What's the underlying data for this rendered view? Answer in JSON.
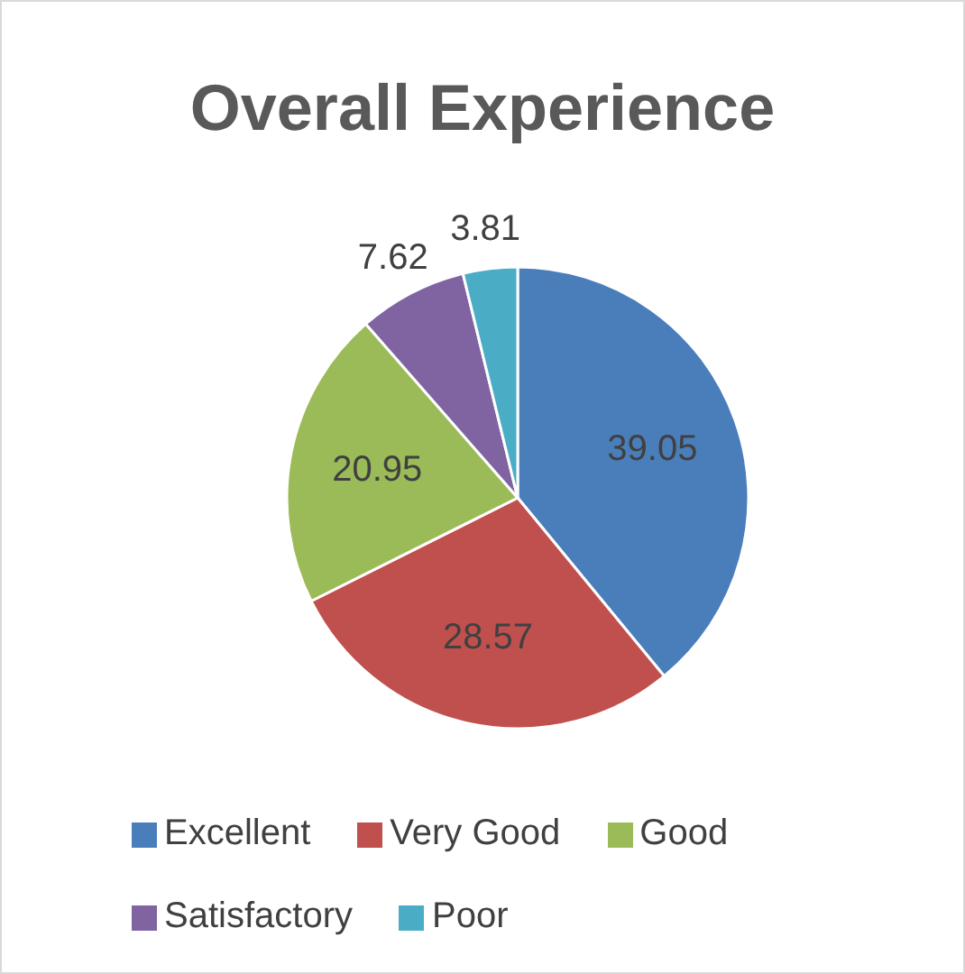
{
  "chart_data": {
    "type": "pie",
    "title": "Overall Experience",
    "categories": [
      "Excellent",
      "Very Good",
      "Good",
      "Satisfactory",
      "Poor"
    ],
    "values": [
      39.05,
      28.57,
      20.95,
      7.62,
      3.81
    ],
    "colors": [
      "#4a7ebb",
      "#c0504d",
      "#9bbb59",
      "#8064a2",
      "#4bacc6"
    ],
    "data_labels": true,
    "legend": "bottom"
  }
}
